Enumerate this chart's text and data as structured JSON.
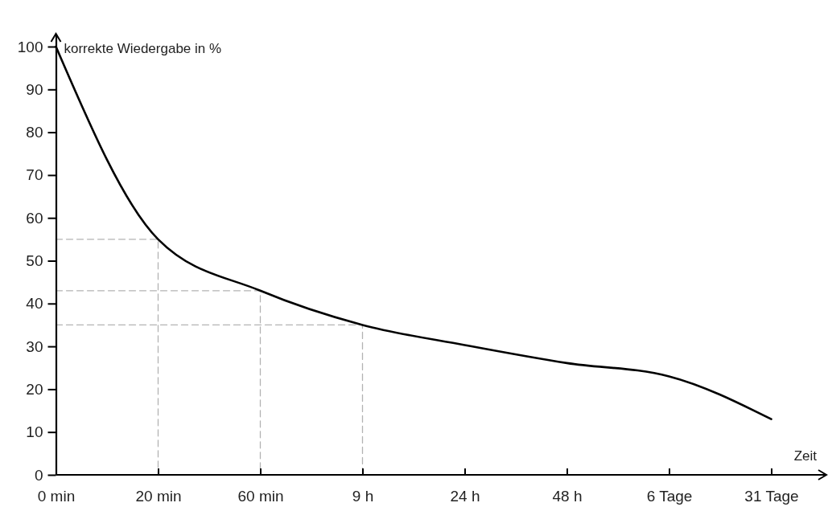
{
  "chart_data": {
    "type": "line",
    "xlabel": "Zeit",
    "ylabel": "korrekte Wiedergabe in %",
    "categories": [
      "0 min",
      "20 min",
      "60 min",
      "9 h",
      "24 h",
      "48 h",
      "6 Tage",
      "31 Tage"
    ],
    "ylim": [
      0,
      103
    ],
    "yticks": [
      0,
      10,
      20,
      30,
      40,
      50,
      60,
      70,
      80,
      90,
      100
    ],
    "grid": false,
    "marker": "none",
    "series": [
      {
        "color": "#000000",
        "line_style": "solid",
        "values": [
          100,
          55,
          43,
          35,
          30.3,
          26.1,
          23,
          13
        ]
      },
      {
        "color": "#b3b3b3",
        "line_style": "dashed",
        "x": [
          "0 min",
          "20 min",
          "20 min"
        ],
        "values": [
          55,
          55,
          0
        ]
      },
      {
        "color": "#b3b3b3",
        "line_style": "dashed",
        "x": [
          "0 min",
          "60 min",
          "60 min"
        ],
        "values": [
          43,
          43,
          0
        ]
      },
      {
        "color": "#b3b3b3",
        "line_style": "dashed",
        "x": [
          "0 min",
          "9 h",
          "9 h"
        ],
        "values": [
          35,
          35,
          0
        ]
      }
    ]
  }
}
